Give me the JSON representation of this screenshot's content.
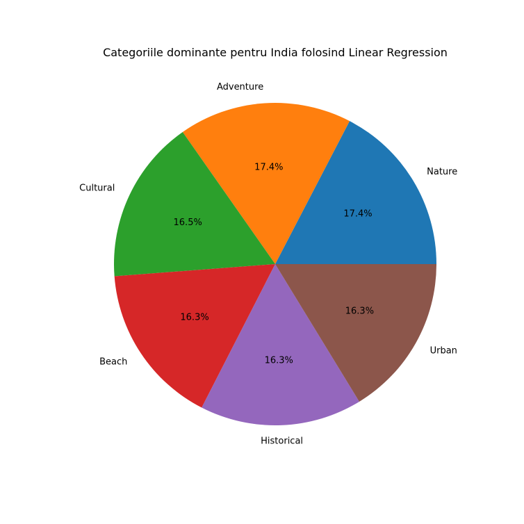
{
  "chart_data": {
    "type": "pie",
    "title": "Categoriile dominante pentru India folosind Linear Regression",
    "categories": [
      "Nature",
      "Adventure",
      "Cultural",
      "Beach",
      "Historical",
      "Urban"
    ],
    "values": [
      17.4,
      17.4,
      16.5,
      16.3,
      16.3,
      16.3
    ],
    "value_labels": [
      "17.4%",
      "17.4%",
      "16.5%",
      "16.3%",
      "16.3%",
      "16.3%"
    ],
    "colors": [
      "#1f77b4",
      "#ff7f0e",
      "#2ca02c",
      "#d62728",
      "#9467bd",
      "#8c564b"
    ],
    "start_angle_deg": 0,
    "direction": "counterclockwise",
    "legend": "none"
  }
}
